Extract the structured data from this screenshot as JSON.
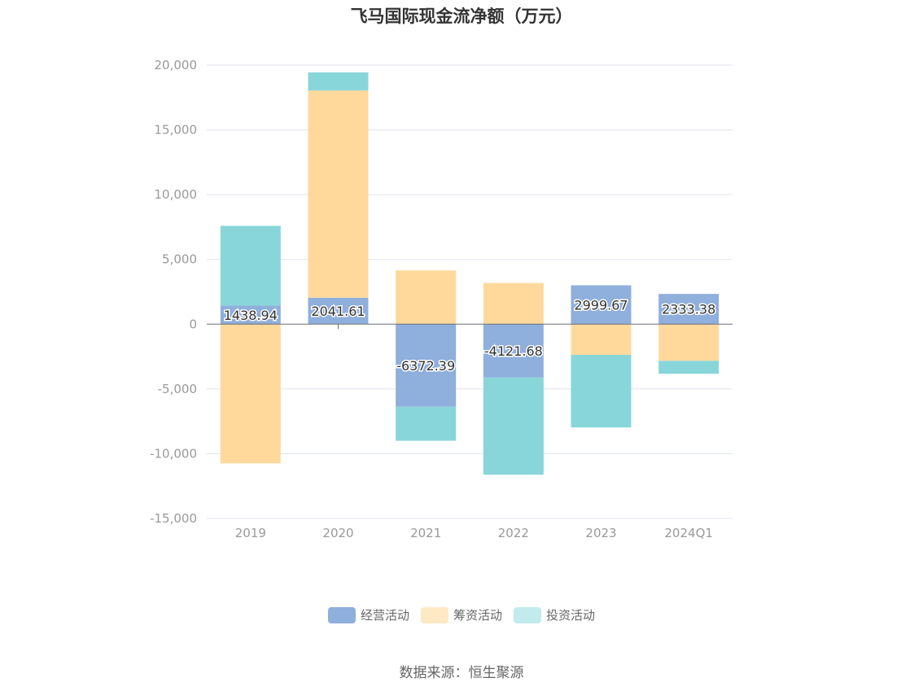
{
  "title": "飞马国际现金流净额（万元）",
  "source": "数据来源：恒生聚源",
  "chart_data": {
    "type": "bar",
    "stacked": true,
    "categories": [
      "2019",
      "2020",
      "2021",
      "2022",
      "2023",
      "2024Q1"
    ],
    "ylim": [
      -15000,
      20000
    ],
    "yticks": [
      20000,
      15000,
      10000,
      5000,
      0,
      -5000,
      -10000,
      -15000
    ],
    "ytick_labels": [
      "20,000",
      "15,000",
      "10,000",
      "5,000",
      "0",
      "-5,000",
      "-10,000",
      "-15,000"
    ],
    "grid": true,
    "legend_position": "bottom",
    "series": [
      {
        "name": "经营活动",
        "color": "#8FAFDC",
        "legend_color": "#8FAFDC",
        "values": [
          1438.94,
          2041.61,
          -6372.39,
          -4121.68,
          2999.67,
          2333.38
        ],
        "labels": [
          "1438.94",
          "2041.61",
          "-6372.39",
          "-4121.68",
          "2999.67",
          "2333.38"
        ]
      },
      {
        "name": "筹资活动",
        "color": "#FFD99C",
        "legend_color": "#FFE8C4",
        "values": [
          -10750,
          16000,
          4150,
          3180,
          -2370,
          -2830
        ]
      },
      {
        "name": "投资活动",
        "color": "#88D6DA",
        "legend_color": "#C2EBEE",
        "values": [
          6150,
          1400,
          -2630,
          -7500,
          -5600,
          -1000
        ]
      }
    ]
  }
}
